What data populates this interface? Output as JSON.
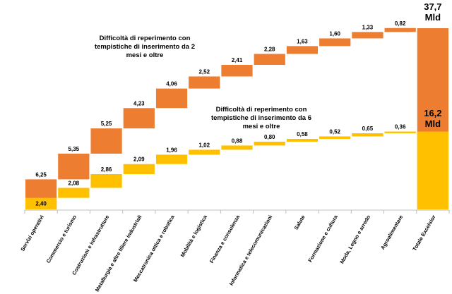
{
  "chart_data": {
    "type": "waterfall",
    "categories": [
      "Servizi operativi",
      "Commercio e turismo",
      "Costruzioni e infrastrutture",
      "Metallurgia e altre filiere industriali",
      "Meccatronica ottica e robotica",
      "Mobilità e logistica",
      "Finanza e consulenza",
      "Informatica e telecomunicazioni",
      "Salute",
      "Formazione e cultura",
      "Moda, Legno e arredo",
      "Agroalimentare"
    ],
    "total_category": "Totale Excelsior",
    "series": [
      {
        "name": "Difficoltà di reperimento con tempistiche di inserimento da 2 mesi e oltre",
        "color": "#ed7d31",
        "values": [
          6.25,
          5.35,
          5.25,
          4.23,
          4.06,
          2.52,
          2.41,
          2.28,
          1.63,
          1.6,
          1.33,
          0.82
        ],
        "value_labels": [
          "6,25",
          "5,35",
          "5,25",
          "4,23",
          "4,06",
          "2,52",
          "2,41",
          "2,28",
          "1,63",
          "1,60",
          "1,33",
          "0,82"
        ],
        "total": 37.7,
        "total_label": "37,7 Mld"
      },
      {
        "name": "Difficoltà di reperimento con tempistiche di inserimento da 6 mesi e oltre",
        "color": "#ffc000",
        "values": [
          2.4,
          2.08,
          2.86,
          2.09,
          1.96,
          1.02,
          0.88,
          0.8,
          0.58,
          0.52,
          0.65,
          0.36
        ],
        "value_labels": [
          "2,40",
          "2,08",
          "2,86",
          "2,09",
          "1,96",
          "1,02",
          "0,88",
          "0,80",
          "0,58",
          "0,52",
          "0,65",
          "0,36"
        ],
        "total": 16.2,
        "total_label": "16,2 Mld"
      }
    ]
  }
}
